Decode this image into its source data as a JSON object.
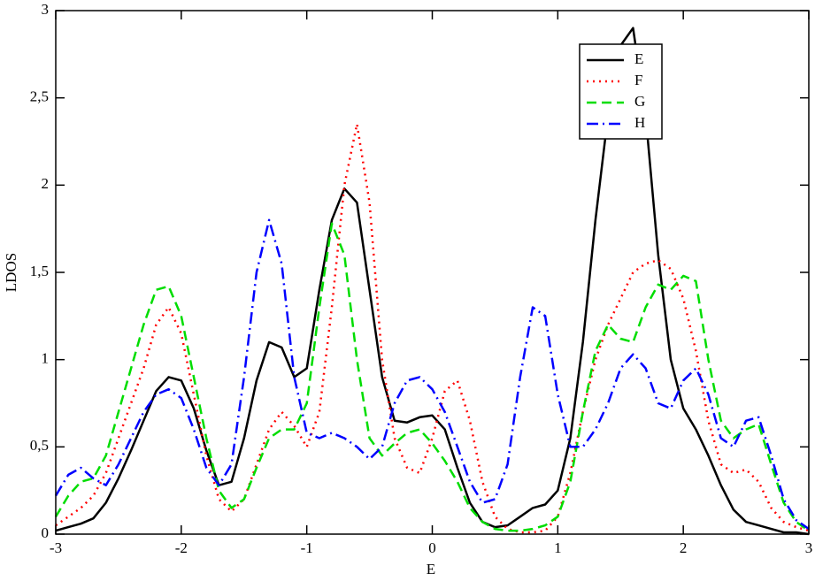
{
  "chart_data": {
    "type": "line",
    "xlabel": "E",
    "ylabel": "LDOS",
    "x": [
      -3.0,
      -2.9,
      -2.8,
      -2.7,
      -2.6,
      -2.5,
      -2.4,
      -2.3,
      -2.2,
      -2.1,
      -2.0,
      -1.9,
      -1.8,
      -1.7,
      -1.6,
      -1.5,
      -1.4,
      -1.3,
      -1.2,
      -1.1,
      -1.0,
      -0.9,
      -0.8,
      -0.7,
      -0.6,
      -0.5,
      -0.4,
      -0.3,
      -0.2,
      -0.1,
      0.0,
      0.1,
      0.2,
      0.3,
      0.4,
      0.5,
      0.6,
      0.7,
      0.8,
      0.9,
      1.0,
      1.1,
      1.2,
      1.3,
      1.4,
      1.5,
      1.6,
      1.7,
      1.8,
      1.9,
      2.0,
      2.1,
      2.2,
      2.3,
      2.4,
      2.5,
      2.6,
      2.7,
      2.8,
      2.9,
      3.0
    ],
    "series": [
      {
        "name": "E",
        "color": "#000000",
        "style": "solid",
        "values": [
          0.02,
          0.04,
          0.06,
          0.09,
          0.18,
          0.32,
          0.48,
          0.65,
          0.82,
          0.9,
          0.88,
          0.72,
          0.48,
          0.28,
          0.3,
          0.55,
          0.88,
          1.1,
          1.07,
          0.9,
          0.95,
          1.4,
          1.8,
          1.98,
          1.9,
          1.4,
          0.9,
          0.65,
          0.64,
          0.67,
          0.68,
          0.6,
          0.38,
          0.18,
          0.07,
          0.04,
          0.05,
          0.1,
          0.15,
          0.17,
          0.25,
          0.55,
          1.1,
          1.8,
          2.4,
          2.8,
          2.9,
          2.4,
          1.6,
          1.0,
          0.72,
          0.6,
          0.45,
          0.28,
          0.14,
          0.07,
          0.05,
          0.03,
          0.01,
          0.01,
          0.0
        ]
      },
      {
        "name": "F",
        "color": "#ff0000",
        "style": "dotted",
        "values": [
          0.05,
          0.1,
          0.15,
          0.22,
          0.35,
          0.55,
          0.75,
          0.95,
          1.2,
          1.3,
          1.15,
          0.8,
          0.45,
          0.2,
          0.13,
          0.2,
          0.4,
          0.6,
          0.7,
          0.62,
          0.5,
          0.7,
          1.3,
          2.0,
          2.35,
          1.9,
          1.0,
          0.55,
          0.38,
          0.35,
          0.55,
          0.82,
          0.88,
          0.65,
          0.3,
          0.1,
          0.03,
          0.01,
          0.01,
          0.02,
          0.1,
          0.35,
          0.7,
          1.0,
          1.2,
          1.35,
          1.5,
          1.55,
          1.57,
          1.52,
          1.35,
          1.05,
          0.65,
          0.4,
          0.35,
          0.37,
          0.3,
          0.15,
          0.07,
          0.04,
          0.02
        ]
      },
      {
        "name": "G",
        "color": "#00dd00",
        "style": "dashed",
        "values": [
          0.1,
          0.22,
          0.3,
          0.32,
          0.45,
          0.7,
          0.95,
          1.2,
          1.4,
          1.42,
          1.25,
          0.9,
          0.55,
          0.25,
          0.15,
          0.2,
          0.38,
          0.55,
          0.6,
          0.6,
          0.75,
          1.3,
          1.78,
          1.6,
          1.0,
          0.55,
          0.45,
          0.52,
          0.58,
          0.6,
          0.52,
          0.42,
          0.3,
          0.15,
          0.07,
          0.03,
          0.02,
          0.02,
          0.03,
          0.05,
          0.1,
          0.3,
          0.7,
          1.05,
          1.2,
          1.12,
          1.1,
          1.3,
          1.43,
          1.4,
          1.48,
          1.45,
          1.0,
          0.65,
          0.55,
          0.6,
          0.63,
          0.4,
          0.18,
          0.07,
          0.02
        ]
      },
      {
        "name": "H",
        "color": "#0000ff",
        "style": "dashdot",
        "values": [
          0.22,
          0.34,
          0.38,
          0.32,
          0.28,
          0.4,
          0.55,
          0.7,
          0.8,
          0.83,
          0.78,
          0.6,
          0.38,
          0.28,
          0.4,
          0.9,
          1.5,
          1.8,
          1.55,
          0.9,
          0.58,
          0.55,
          0.58,
          0.55,
          0.5,
          0.43,
          0.5,
          0.75,
          0.88,
          0.9,
          0.83,
          0.7,
          0.5,
          0.3,
          0.18,
          0.2,
          0.4,
          0.9,
          1.3,
          1.25,
          0.8,
          0.5,
          0.5,
          0.6,
          0.75,
          0.95,
          1.03,
          0.95,
          0.75,
          0.72,
          0.88,
          0.95,
          0.8,
          0.55,
          0.5,
          0.65,
          0.67,
          0.45,
          0.2,
          0.08,
          0.03
        ]
      }
    ],
    "xlim": [
      -3,
      3
    ],
    "xticks": [
      -3,
      -2,
      -1,
      0,
      1,
      2,
      3
    ],
    "ylim": [
      0,
      3
    ],
    "yticks": [
      0,
      {
        "value": 0.5,
        "label": "0,5"
      },
      1,
      {
        "value": 1.5,
        "label": "1,5"
      },
      2,
      {
        "value": 2.5,
        "label": "2,5"
      },
      3
    ],
    "legend": "top-right"
  }
}
